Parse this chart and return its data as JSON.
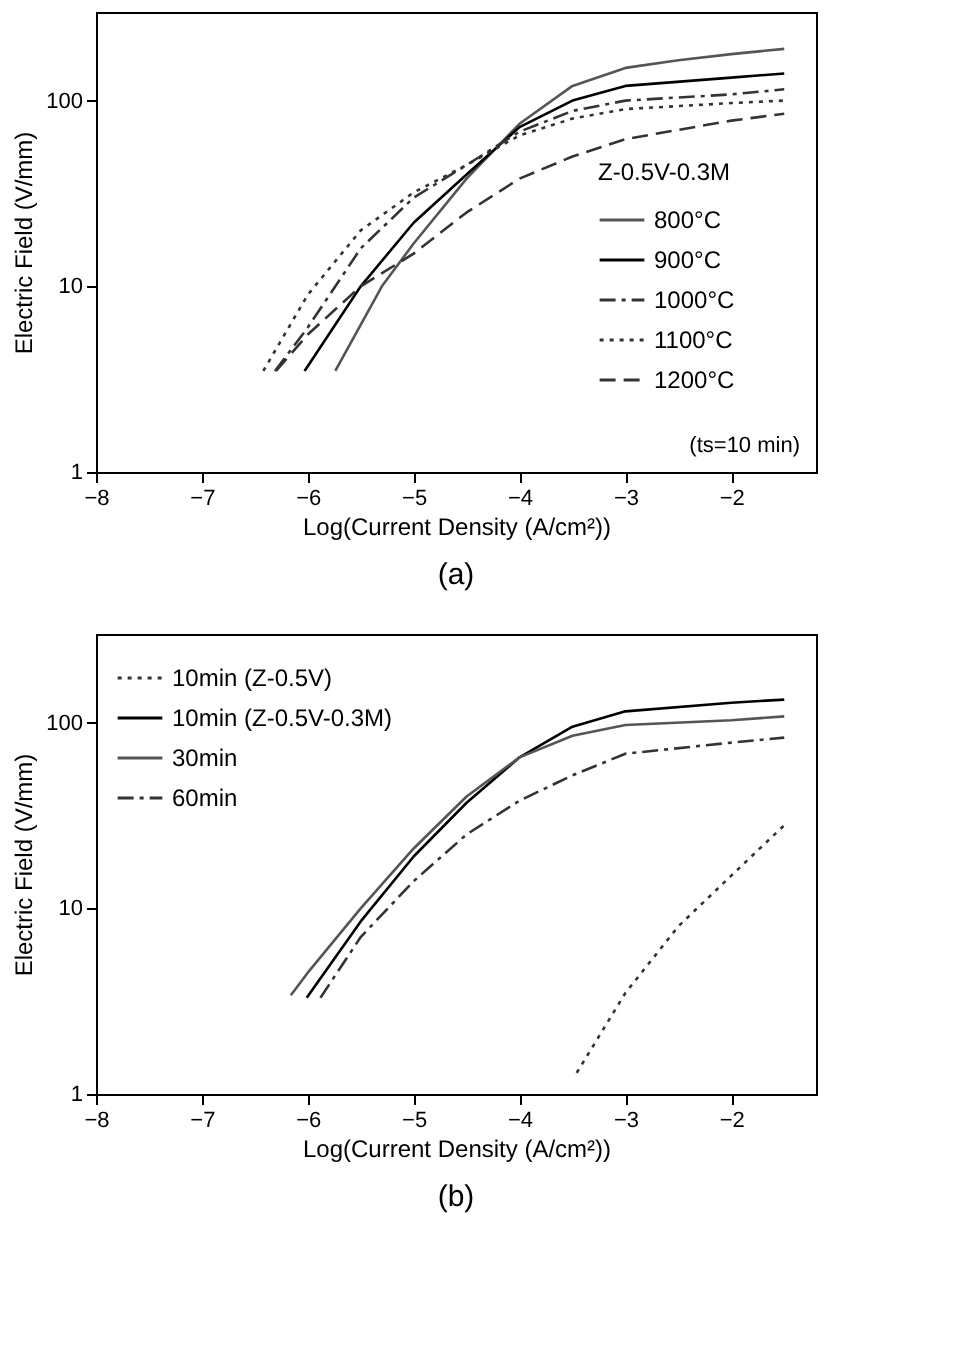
{
  "chart_data": [
    {
      "type": "line",
      "xlabel": "Log(Current Density (A/cm²))",
      "ylabel": "Electric Field (V/mm)",
      "legend_title": "Z-0.5V-0.3M",
      "legend": "bottom right",
      "log": "y",
      "grid": false,
      "marker": "none",
      "xlim": [
        -8,
        -1.2
      ],
      "xticks": [
        -8,
        -7,
        -6,
        -5,
        -4,
        -3,
        -2
      ],
      "ylim": [
        1,
        300
      ],
      "yticks": [
        1,
        10,
        100
      ],
      "annotations": [
        "(ts=10 min)",
        "(a)"
      ],
      "series": [
        {
          "name": "800°C",
          "color": "#555555",
          "line_style": "solid",
          "x": [
            -5.74,
            -5.3,
            -5,
            -4.5,
            -4,
            -3.5,
            -3,
            -2.5,
            -2,
            -1.5
          ],
          "values": [
            3.5,
            10,
            17,
            38,
            75,
            120,
            150,
            165,
            178,
            190
          ]
        },
        {
          "name": "900°C",
          "color": "#000000",
          "line_style": "solid",
          "x": [
            -6.03,
            -5.5,
            -5,
            -4.5,
            -4,
            -3.5,
            -3,
            -2,
            -1.5
          ],
          "values": [
            3.5,
            10,
            22,
            40,
            72,
            100,
            120,
            133,
            140
          ]
        },
        {
          "name": "1000°C",
          "color": "#333333",
          "line_style": "dashdot",
          "x": [
            -6.31,
            -6,
            -5.5,
            -5,
            -4.5,
            -4,
            -3.5,
            -3,
            -2,
            -1.5
          ],
          "values": [
            3.5,
            6,
            16,
            30,
            45,
            68,
            88,
            100,
            108,
            115
          ]
        },
        {
          "name": "1100°C",
          "color": "#333333",
          "line_style": "dotted",
          "x": [
            -6.42,
            -6,
            -5.5,
            -5,
            -4.5,
            -4,
            -3.5,
            -3,
            -2,
            -1.5
          ],
          "values": [
            3.5,
            9,
            20,
            32,
            45,
            65,
            80,
            90,
            97,
            100
          ]
        },
        {
          "name": "1200°C",
          "color": "#333333",
          "line_style": "dashed",
          "x": [
            -6.3,
            -6,
            -5.5,
            -5,
            -4.5,
            -4,
            -3.5,
            -3,
            -2,
            -1.5
          ],
          "values": [
            3.5,
            5.5,
            10,
            15,
            25,
            38,
            50,
            62,
            78,
            85
          ]
        }
      ]
    },
    {
      "type": "line",
      "xlabel": "Log(Current Density (A/cm²))",
      "ylabel": "Electric Field (V/mm)",
      "legend": "top left",
      "log": "y",
      "grid": false,
      "marker": "none",
      "xlim": [
        -8,
        -1.2
      ],
      "xticks": [
        -8,
        -7,
        -6,
        -5,
        -4,
        -3,
        -2
      ],
      "ylim": [
        1,
        300
      ],
      "yticks": [
        1,
        10,
        100
      ],
      "annotations": [
        "(b)"
      ],
      "series": [
        {
          "name": "10min (Z-0.5V)",
          "color": "#333333",
          "line_style": "dotted",
          "x": [
            -3.46,
            -3,
            -2.5,
            -2,
            -1.5
          ],
          "values": [
            1.3,
            3.5,
            8,
            15,
            28
          ]
        },
        {
          "name": "10min (Z-0.5V-0.3M)",
          "color": "#000000",
          "line_style": "solid",
          "x": [
            -6.01,
            -5.5,
            -5,
            -4.5,
            -4,
            -3.5,
            -3,
            -2,
            -1.5
          ],
          "values": [
            3.3,
            8.5,
            19,
            37,
            65,
            95,
            115,
            128,
            133
          ]
        },
        {
          "name": "30min",
          "color": "#555555",
          "line_style": "solid",
          "x": [
            -6.16,
            -6,
            -5.5,
            -5,
            -4.5,
            -4,
            -3.5,
            -3,
            -2,
            -1.5
          ],
          "values": [
            3.4,
            4.5,
            10,
            21,
            40,
            65,
            85,
            97,
            103,
            108
          ]
        },
        {
          "name": "60min",
          "color": "#333333",
          "line_style": "dashdot",
          "x": [
            -5.88,
            -5.5,
            -5,
            -4.5,
            -4,
            -3.5,
            -3,
            -2,
            -1.5
          ],
          "values": [
            3.3,
            7,
            14,
            25,
            38,
            52,
            68,
            78,
            83
          ]
        }
      ]
    }
  ]
}
